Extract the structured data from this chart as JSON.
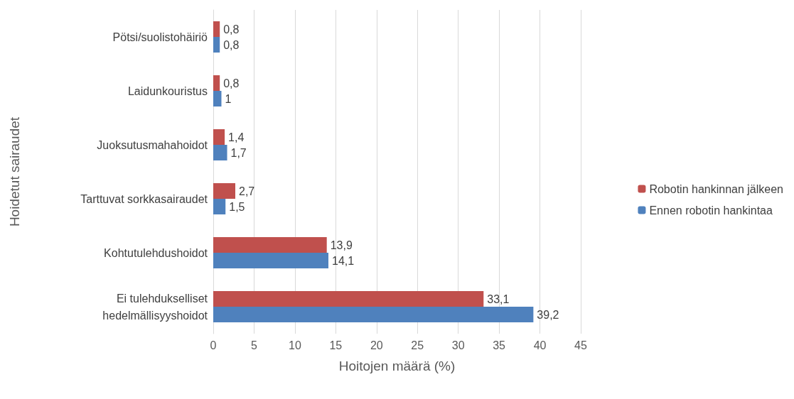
{
  "chart_data": {
    "type": "bar",
    "orientation": "horizontal",
    "xlabel": "Hoitojen määrä (%)",
    "ylabel": "Hoidetut sairaudet",
    "categories": [
      "Pötsi/suolistohäiriö",
      "Laidunkouristus",
      "Juoksutusmahahoidot",
      "Tarttuvat sorkkasairaudet",
      "Kohtutulehdushoidot",
      "Ei tulehdukselliset\nhedelmällisyyshoidot"
    ],
    "series": [
      {
        "name": "Robotin hankinnan jälkeen",
        "color": "#c0504d",
        "values": [
          0.8,
          0.8,
          1.4,
          2.7,
          13.9,
          33.1
        ],
        "value_labels": [
          "0,8",
          "0,8",
          "1,4",
          "2,7",
          "13,9",
          "33,1"
        ]
      },
      {
        "name": "Ennen robotin hankintaa",
        "color": "#4f81bd",
        "values": [
          0.8,
          1,
          1.7,
          1.5,
          14.1,
          39.2
        ],
        "value_labels": [
          "0,8",
          "1",
          "1,7",
          "1,5",
          "14,1",
          "39,2"
        ]
      }
    ],
    "xlim": [
      0,
      45
    ],
    "xticks": [
      0,
      5,
      10,
      15,
      20,
      25,
      30,
      35,
      40,
      45
    ],
    "grid": "x",
    "legend": "right"
  }
}
